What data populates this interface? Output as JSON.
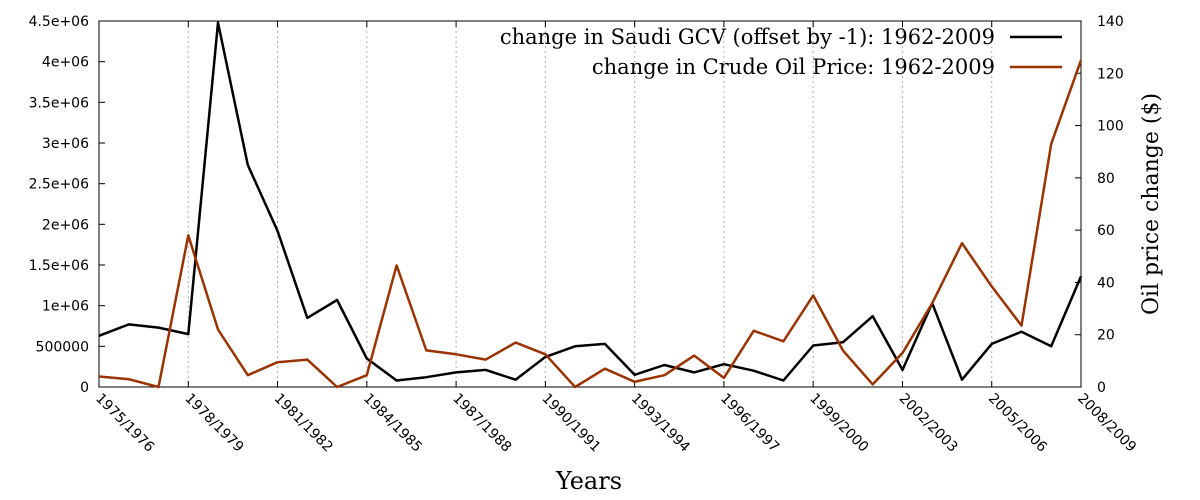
{
  "chart_data": {
    "type": "line",
    "xlabel": "Years",
    "ylabel_right": "Oil price change ($)",
    "ylim_left": [
      0,
      4500000
    ],
    "ylim_right": [
      0,
      140
    ],
    "grid": "vertical dotted lines at labeled x ticks",
    "legend_placement": "top-right",
    "colors": {
      "gcv": "#000000",
      "oil": "#993300"
    },
    "x_tick_labels": [
      "1975/1976",
      "1978/1979",
      "1981/1982",
      "1984/1985",
      "1987/1988",
      "1990/1991",
      "1993/1994",
      "1996/1997",
      "1999/2000",
      "2002/2003",
      "2005/2006",
      "2008/2009"
    ],
    "y_left_tick_labels": [
      "0",
      "500000",
      "1e+06",
      "1.5e+06",
      "2e+06",
      "2.5e+06",
      "3e+06",
      "3.5e+06",
      "4e+06",
      "4.5e+06"
    ],
    "y_left_ticks": [
      0,
      500000,
      1000000,
      1500000,
      2000000,
      2500000,
      3000000,
      3500000,
      4000000,
      4500000
    ],
    "y_right_ticks": [
      0,
      20,
      40,
      60,
      80,
      100,
      120,
      140
    ],
    "x": [
      "1975/1976",
      "1976/1977",
      "1977/1978",
      "1978/1979",
      "1979/1980",
      "1980/1981",
      "1981/1982",
      "1982/1983",
      "1983/1984",
      "1984/1985",
      "1985/1986",
      "1986/1987",
      "1987/1988",
      "1988/1989",
      "1989/1990",
      "1990/1991",
      "1991/1992",
      "1992/1993",
      "1993/1994",
      "1994/1995",
      "1995/1996",
      "1996/1997",
      "1997/1998",
      "1998/1999",
      "1999/2000",
      "2000/2001",
      "2001/2002",
      "2002/2003",
      "2003/2004",
      "2004/2005",
      "2005/2006",
      "2006/2007",
      "2007/2008",
      "2008/2009"
    ],
    "series": [
      {
        "name": "change in Saudi GCV (offset by -1): 1962-2009",
        "axis": "left",
        "values": [
          630000,
          770000,
          730000,
          650000,
          4480000,
          2730000,
          1920000,
          850000,
          1070000,
          350000,
          80000,
          120000,
          180000,
          210000,
          90000,
          370000,
          500000,
          530000,
          150000,
          270000,
          180000,
          280000,
          200000,
          80000,
          510000,
          550000,
          870000,
          210000,
          1030000,
          90000,
          530000,
          680000,
          500000,
          1360000
        ]
      },
      {
        "name": "change in Crude Oil Price: 1962-2009",
        "axis": "right",
        "values": [
          4,
          3,
          0,
          58,
          22,
          4.5,
          9.5,
          10.5,
          0,
          4.5,
          46.5,
          14,
          12.5,
          10.5,
          17,
          12.5,
          0,
          7,
          2,
          4.5,
          12,
          3.5,
          21.5,
          17.5,
          35,
          14,
          1,
          13,
          32,
          55,
          38.5,
          23.5,
          93,
          125
        ]
      }
    ]
  }
}
